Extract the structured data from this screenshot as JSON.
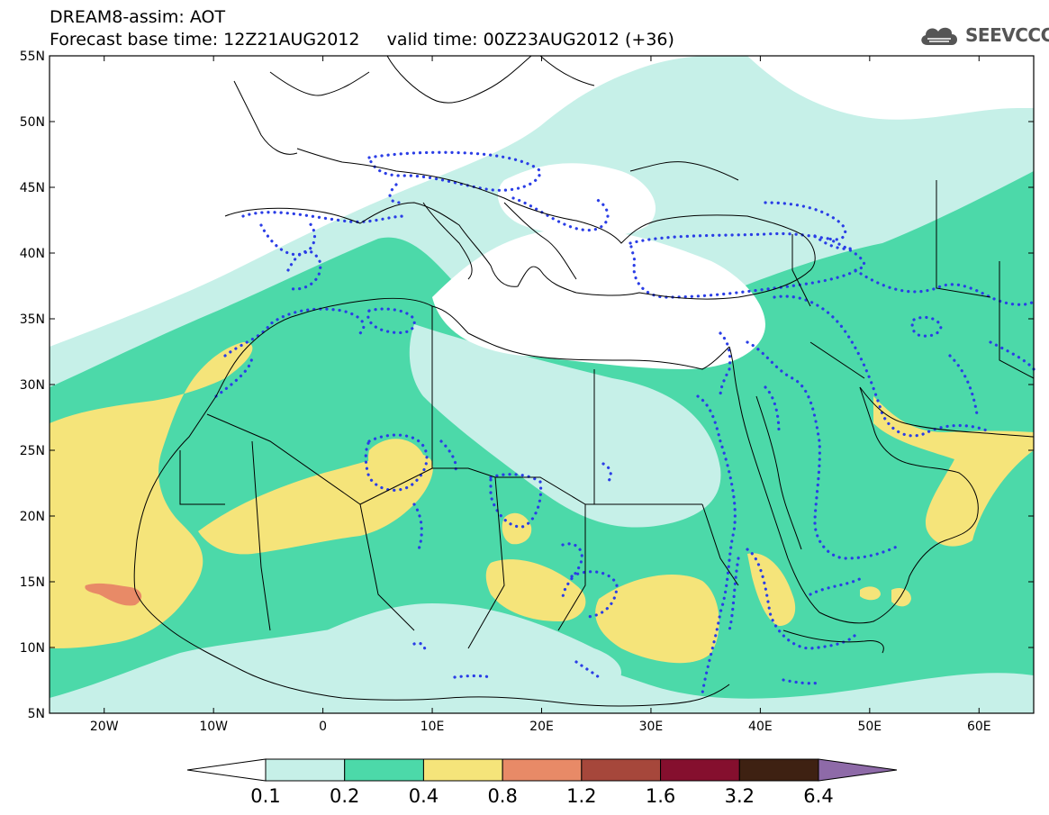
{
  "header": {
    "title_line1": "DREAM8-assim: AOT",
    "title_line2": "Forecast base time: 12Z21AUG2012     valid time: 00Z23AUG2012 (+36)"
  },
  "logo": {
    "text": "SEEVCCC",
    "icon": "cloud-icon"
  },
  "map": {
    "lon_range": [
      -25,
      65
    ],
    "lat_range": [
      5,
      55
    ],
    "lat_labels": [
      "55N",
      "50N",
      "45N",
      "40N",
      "35N",
      "30N",
      "25N",
      "20N",
      "15N",
      "10N",
      "5N"
    ],
    "lon_labels": [
      "20W",
      "10W",
      "0",
      "10E",
      "20E",
      "30E",
      "40E",
      "50E",
      "60E"
    ]
  },
  "colorbar": {
    "labels": [
      "0.1",
      "0.2",
      "0.4",
      "0.8",
      "1.2",
      "1.6",
      "3.2",
      "6.4"
    ],
    "colors": [
      "#ffffff",
      "#c6f0e8",
      "#4cd9a9",
      "#f5e47a",
      "#e88a67",
      "#a6473b",
      "#850f2e",
      "#3e2112",
      "#8e6aa8"
    ]
  },
  "colors": {
    "aot_0_1": "#c6f0e8",
    "aot_0_2": "#4cd9a9",
    "aot_0_4": "#f5e47a",
    "aot_0_8": "#e88a67",
    "dots": "#2a3de6"
  }
}
